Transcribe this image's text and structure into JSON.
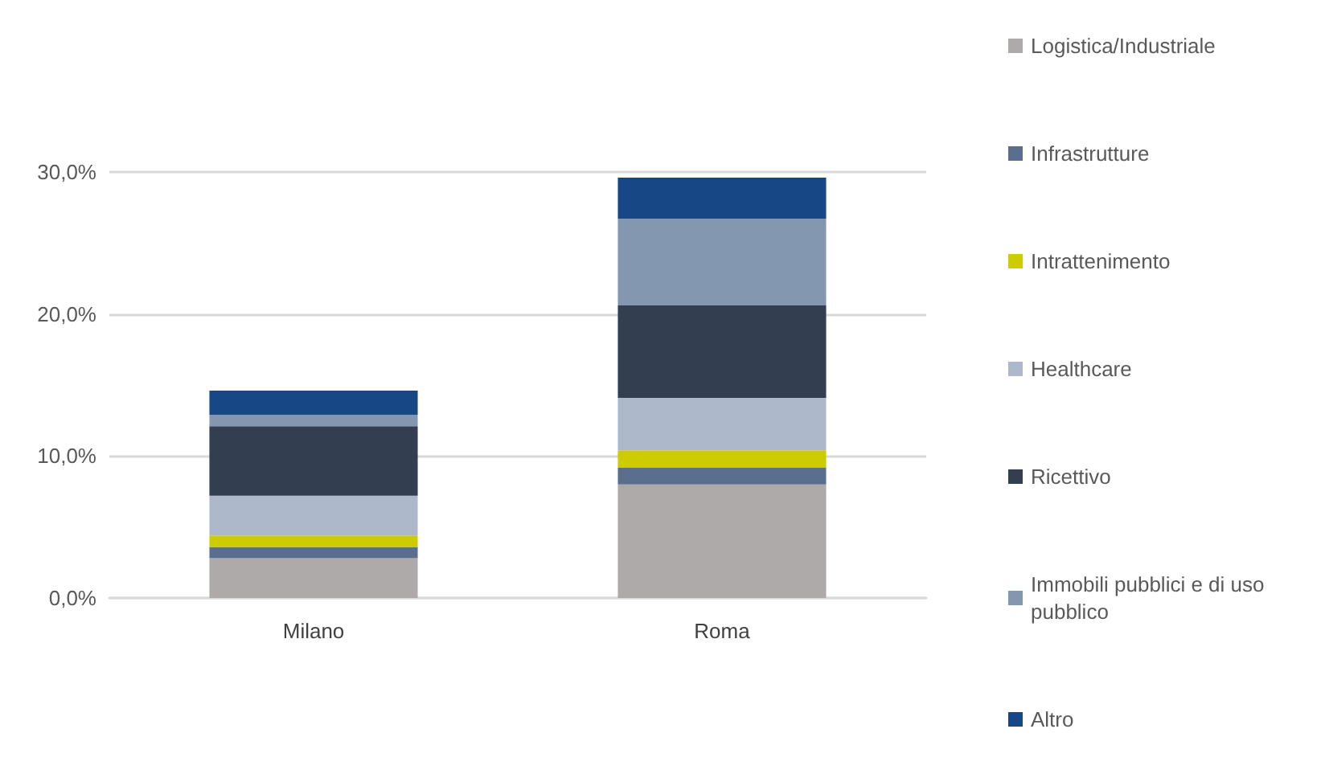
{
  "chart_data": {
    "type": "bar",
    "stacked": true,
    "categories": [
      "Milano",
      "Roma"
    ],
    "series": [
      {
        "name": "Logistica/Industriale",
        "color": "#aeaaaa",
        "values": [
          2.8,
          8.0
        ]
      },
      {
        "name": "Infrastrutture",
        "color": "#5a6f8e",
        "values": [
          0.8,
          1.2
        ]
      },
      {
        "name": "Intrattenimento",
        "color": "#cccc00",
        "values": [
          0.8,
          1.2
        ]
      },
      {
        "name": "Healthcare",
        "color": "#adb9ca",
        "values": [
          2.8,
          3.7
        ]
      },
      {
        "name": "Ricettivo",
        "color": "#333f50",
        "values": [
          4.9,
          6.5
        ]
      },
      {
        "name": "Immobili pubblici e di uso pubblico",
        "color": "#8497b0",
        "values": [
          0.8,
          6.1
        ]
      },
      {
        "name": "Altro",
        "color": "#174785",
        "values": [
          1.7,
          2.9
        ]
      }
    ],
    "ylim": [
      0,
      30
    ],
    "yticks": [
      {
        "value": 0,
        "label": "0,0%"
      },
      {
        "value": 10,
        "label": "10,0%"
      },
      {
        "value": 20,
        "label": "20,0%"
      },
      {
        "value": 30,
        "label": "30,0%"
      }
    ],
    "grid": "y",
    "legend": "right"
  }
}
